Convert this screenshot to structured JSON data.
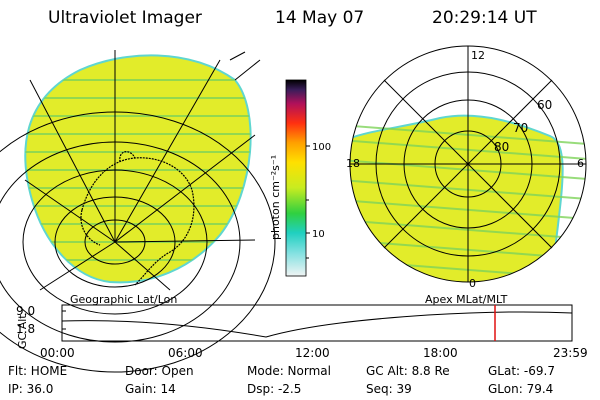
{
  "header": {
    "instrument": "Ultraviolet Imager",
    "date": "14 May 07",
    "time": "20:29:14 UT"
  },
  "colorbar": {
    "unit_label": "photon cm⁻²s⁻¹",
    "ticks": [
      "100",
      "10"
    ]
  },
  "polar_plot": {
    "mlt_labels": [
      "12",
      "18",
      "6",
      "0"
    ],
    "lat_labels": [
      "60",
      "70",
      "80"
    ]
  },
  "panel_labels": {
    "left": "Geographic Lat/Lon",
    "right": "Apex MLat/MLT"
  },
  "altitude_plot": {
    "axis_label": "GC Alt",
    "y_ticks": [
      "9.0",
      "1.8"
    ],
    "time_ticks": [
      "00:00",
      "06:00",
      "12:00",
      "18:00",
      "23:59"
    ]
  },
  "footer": {
    "flt": "Flt: HOME",
    "ip": "IP: 36.0",
    "door": "Door: Open",
    "gain": "Gain: 14",
    "mode": "Mode: Normal",
    "dsp": "Dsp:   -2.5",
    "gc_alt": "GC Alt: 8.8 Re",
    "seq": "Seq: 39",
    "glat": "GLat: -69.7",
    "glon": "GLon: 79.4"
  },
  "colors": {
    "image_fill": "#e2ec2a",
    "image_stripe": "#7fd45a",
    "image_edge": "#5fd6d0",
    "cursor_line": "#e01010"
  }
}
